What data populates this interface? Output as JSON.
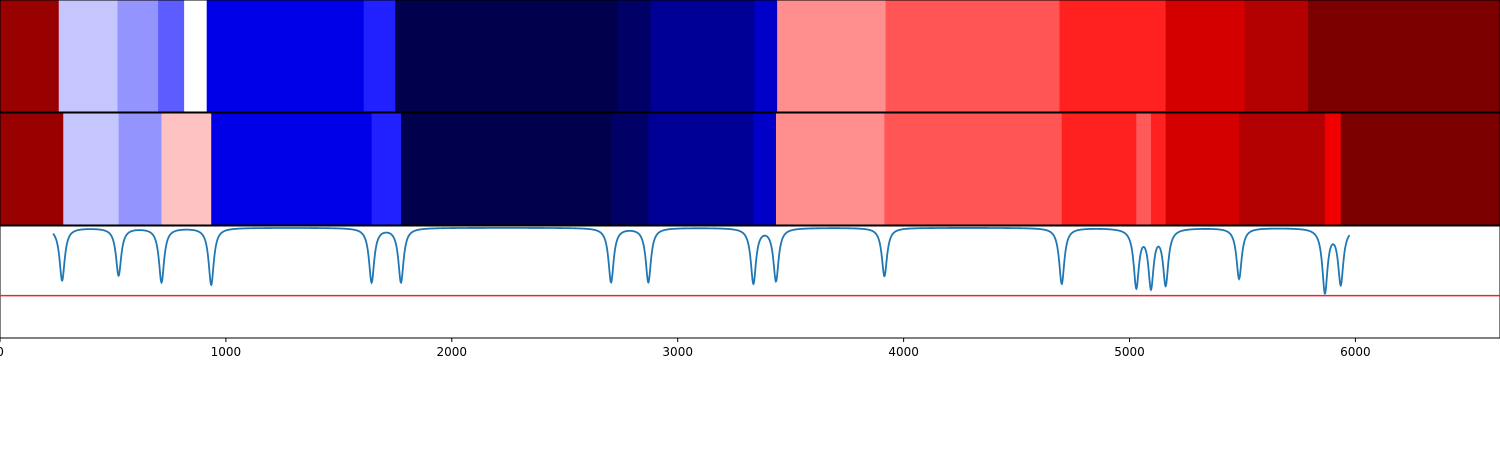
{
  "chart_data": {
    "type": "heatmap",
    "title": "",
    "xlabel": "",
    "ylabel": "",
    "xlim": [
      0,
      6640
    ],
    "grid": false,
    "legend": "none",
    "x_ticks": [
      0,
      1000,
      2000,
      3000,
      4000,
      5000,
      6000
    ],
    "x_tick_labels": [
      "0",
      "1000",
      "2000",
      "3000",
      "4000",
      "5000",
      "6000"
    ],
    "rows": [
      {
        "segments": [
          {
            "start": 0,
            "end": 260,
            "color": "#990000"
          },
          {
            "start": 260,
            "end": 520,
            "color": "#c6c6ff"
          },
          {
            "start": 520,
            "end": 700,
            "color": "#9494ff"
          },
          {
            "start": 700,
            "end": 815,
            "color": "#5c5cff"
          },
          {
            "start": 815,
            "end": 915,
            "color": "#ffffff"
          },
          {
            "start": 915,
            "end": 1610,
            "color": "#0000e8"
          },
          {
            "start": 1610,
            "end": 1750,
            "color": "#2121ff"
          },
          {
            "start": 1750,
            "end": 2730,
            "color": "#00004c"
          },
          {
            "start": 2730,
            "end": 2880,
            "color": "#000066"
          },
          {
            "start": 2880,
            "end": 3340,
            "color": "#000096"
          },
          {
            "start": 3340,
            "end": 3440,
            "color": "#0000c8"
          },
          {
            "start": 3440,
            "end": 3920,
            "color": "#ff8e8e"
          },
          {
            "start": 3920,
            "end": 4690,
            "color": "#ff5555"
          },
          {
            "start": 4690,
            "end": 5160,
            "color": "#ff2020"
          },
          {
            "start": 5160,
            "end": 5510,
            "color": "#d40000"
          },
          {
            "start": 5510,
            "end": 5790,
            "color": "#b30000"
          },
          {
            "start": 5790,
            "end": 6640,
            "color": "#7d0000"
          }
        ]
      },
      {
        "segments": [
          {
            "start": 0,
            "end": 280,
            "color": "#990000"
          },
          {
            "start": 280,
            "end": 525,
            "color": "#c6c6ff"
          },
          {
            "start": 525,
            "end": 715,
            "color": "#9494ff"
          },
          {
            "start": 715,
            "end": 935,
            "color": "#ffc2c2"
          },
          {
            "start": 935,
            "end": 1645,
            "color": "#0000e8"
          },
          {
            "start": 1645,
            "end": 1775,
            "color": "#2121ff"
          },
          {
            "start": 1775,
            "end": 2705,
            "color": "#00004c"
          },
          {
            "start": 2705,
            "end": 2870,
            "color": "#000066"
          },
          {
            "start": 2870,
            "end": 3335,
            "color": "#000096"
          },
          {
            "start": 3335,
            "end": 3435,
            "color": "#0000c8"
          },
          {
            "start": 3435,
            "end": 3915,
            "color": "#ff8e8e"
          },
          {
            "start": 3915,
            "end": 4700,
            "color": "#ff5555"
          },
          {
            "start": 4700,
            "end": 5030,
            "color": "#ff2020"
          },
          {
            "start": 5030,
            "end": 5095,
            "color": "#ff5a5a"
          },
          {
            "start": 5095,
            "end": 5160,
            "color": "#ff2020"
          },
          {
            "start": 5160,
            "end": 5485,
            "color": "#d40000"
          },
          {
            "start": 5485,
            "end": 5865,
            "color": "#b30000"
          },
          {
            "start": 5865,
            "end": 5935,
            "color": "#f00000"
          },
          {
            "start": 5935,
            "end": 6640,
            "color": "#7d0000"
          }
        ]
      }
    ],
    "line_panel": {
      "series_color": "#1f77b4",
      "threshold_color": "#e8262b",
      "threshold": -0.8,
      "ylim": [
        -1.3,
        0.02
      ],
      "dips": [
        {
          "x": 275,
          "depth": -0.62
        },
        {
          "x": 525,
          "depth": -0.56
        },
        {
          "x": 715,
          "depth": -0.64
        },
        {
          "x": 935,
          "depth": -0.67
        },
        {
          "x": 1645,
          "depth": -0.64
        },
        {
          "x": 1775,
          "depth": -0.64
        },
        {
          "x": 2705,
          "depth": -0.64
        },
        {
          "x": 2870,
          "depth": -0.64
        },
        {
          "x": 3335,
          "depth": -0.65
        },
        {
          "x": 3435,
          "depth": -0.62
        },
        {
          "x": 3915,
          "depth": -0.57
        },
        {
          "x": 4700,
          "depth": -0.66
        },
        {
          "x": 5030,
          "depth": -0.68
        },
        {
          "x": 5095,
          "depth": -0.67
        },
        {
          "x": 5160,
          "depth": -0.65
        },
        {
          "x": 5485,
          "depth": -0.6
        },
        {
          "x": 5865,
          "depth": -0.75
        },
        {
          "x": 5935,
          "depth": -0.65
        }
      ]
    }
  }
}
